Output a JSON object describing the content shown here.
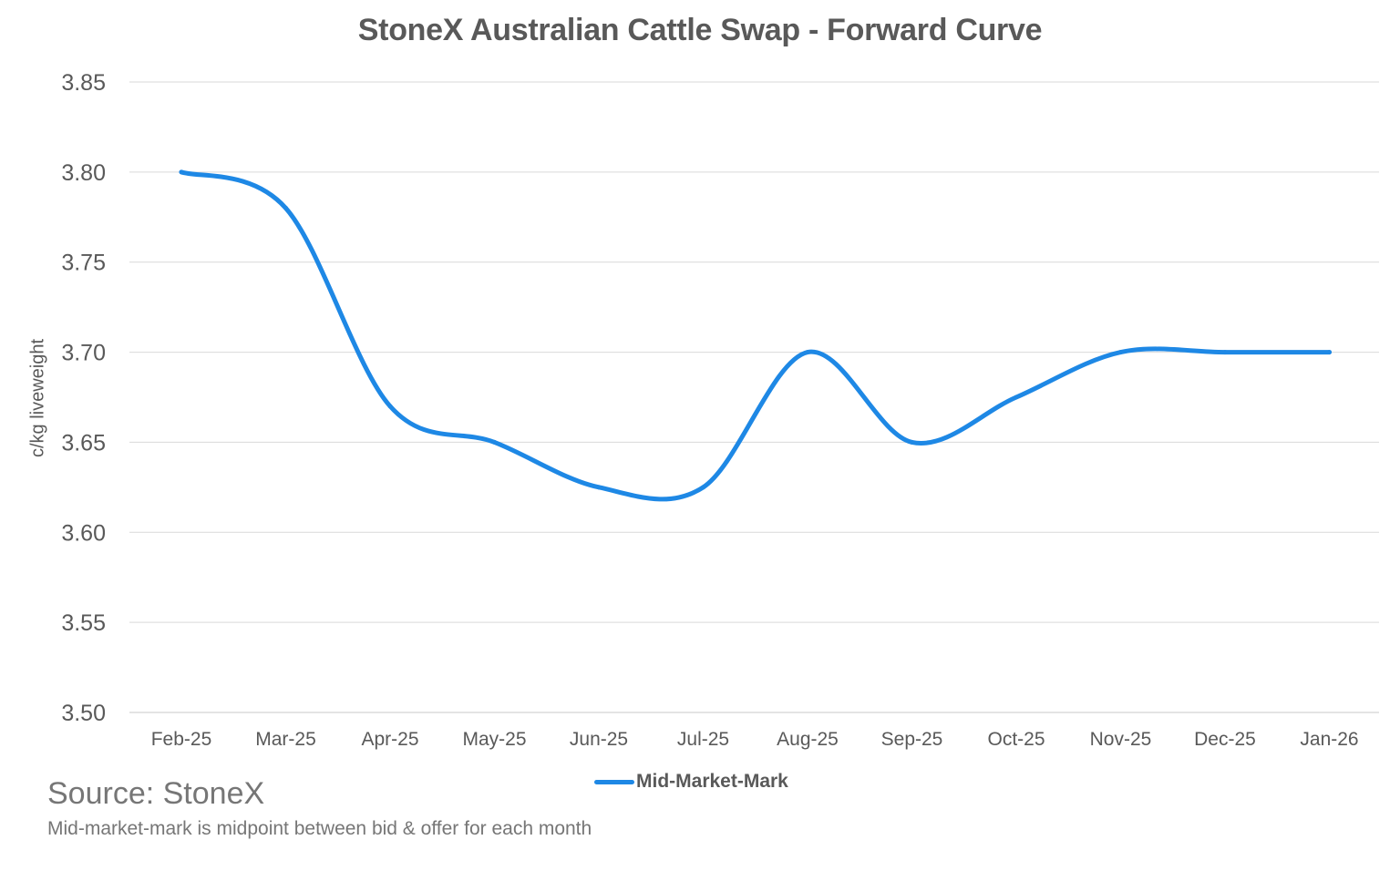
{
  "chart_data": {
    "type": "line",
    "title": "StoneX Australian Cattle Swap - Forward Curve",
    "xlabel": "",
    "ylabel": "c/kg liveweight",
    "categories": [
      "Feb-25",
      "Mar-25",
      "Apr-25",
      "May-25",
      "Jun-25",
      "Jul-25",
      "Aug-25",
      "Sep-25",
      "Oct-25",
      "Nov-25",
      "Dec-25",
      "Jan-26"
    ],
    "series": [
      {
        "name": "Mid-Market-Mark",
        "values": [
          3.8,
          3.78,
          3.67,
          3.65,
          3.625,
          3.625,
          3.7,
          3.65,
          3.675,
          3.7,
          3.7,
          3.7
        ],
        "color": "#1e88e5"
      }
    ],
    "ylim": [
      3.5,
      3.85
    ],
    "yticks": [
      "3.50",
      "3.55",
      "3.60",
      "3.65",
      "3.70",
      "3.75",
      "3.80",
      "3.85"
    ],
    "grid": true,
    "legend": "bottom"
  },
  "source": "Source: StoneX",
  "footnote": "Mid-market-mark is midpoint between bid & offer for each month"
}
